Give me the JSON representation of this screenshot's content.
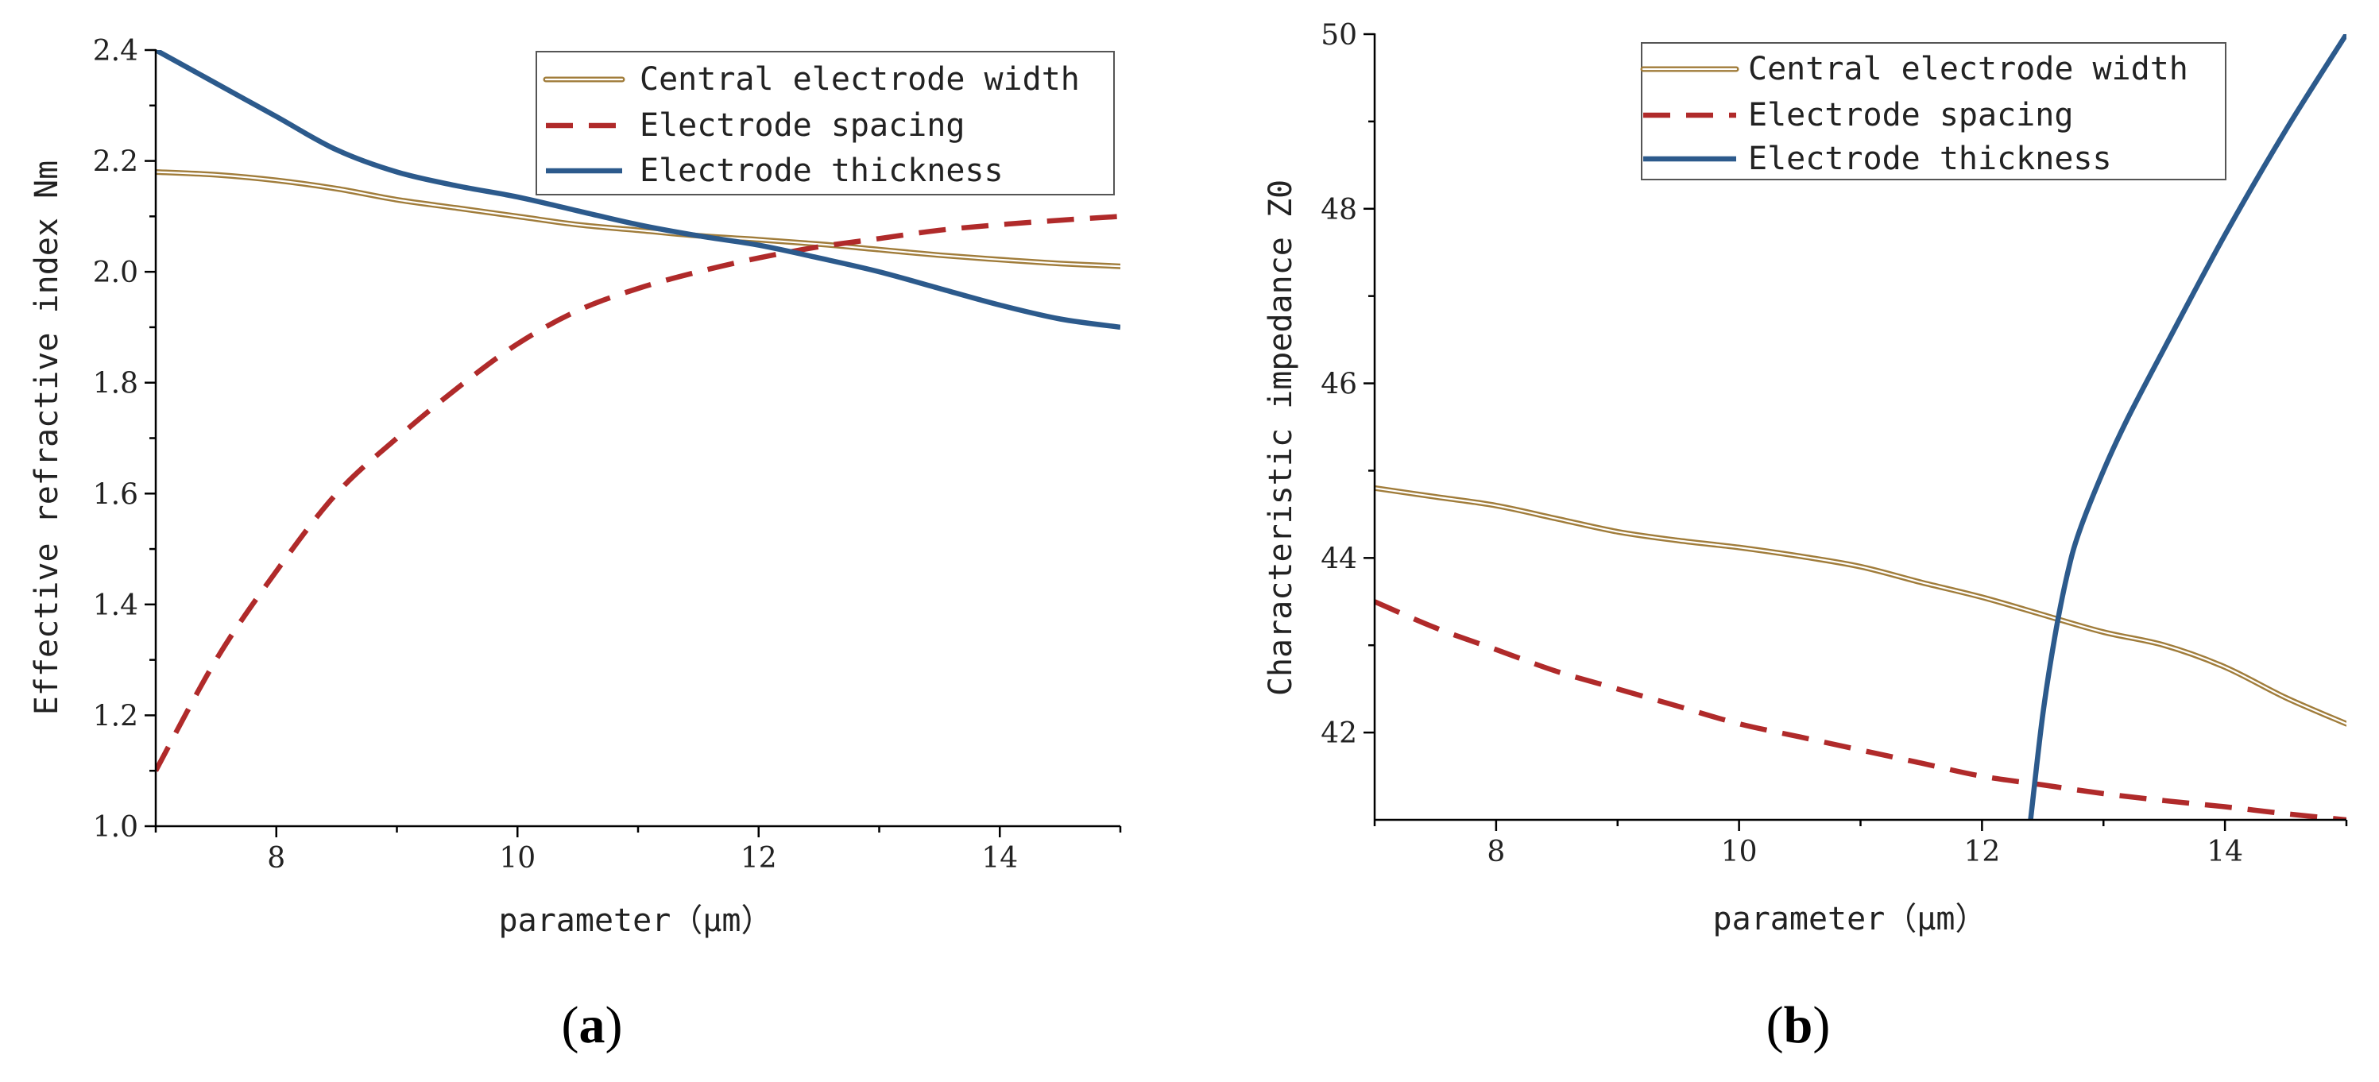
{
  "chart_data": [
    {
      "type": "line",
      "panel_label": "a",
      "xlabel": "parameter（μm）",
      "ylabel": "Effective refractive index Nm",
      "xlim": [
        7,
        15
      ],
      "ylim": [
        1.0,
        2.4
      ],
      "xticks": [
        8,
        10,
        12,
        14
      ],
      "xtick_labels": [
        "8",
        "10",
        "12",
        "14"
      ],
      "yticks": [
        1.0,
        1.2,
        1.4,
        1.6,
        1.8,
        2.0,
        2.2,
        2.4
      ],
      "ytick_labels": [
        "1.0",
        "1.2",
        "1.4",
        "1.6",
        "1.8",
        "2.0",
        "2.2",
        "2.4"
      ],
      "legend_position": "top-right",
      "series": [
        {
          "name": "Central electrode width",
          "style": "double",
          "color": "#a07c3a",
          "x": [
            7,
            7.5,
            8,
            8.5,
            9,
            9.5,
            10,
            10.5,
            11,
            11.5,
            12,
            12.5,
            13,
            13.5,
            14,
            14.5,
            15
          ],
          "y": [
            2.18,
            2.175,
            2.165,
            2.15,
            2.13,
            2.115,
            2.1,
            2.085,
            2.075,
            2.065,
            2.058,
            2.05,
            2.04,
            2.03,
            2.022,
            2.015,
            2.01
          ]
        },
        {
          "name": "Electrode spacing",
          "style": "dashed",
          "color": "#b02a2a",
          "x": [
            7,
            7.5,
            8,
            8.5,
            9,
            9.5,
            10,
            10.5,
            11,
            11.5,
            12,
            12.5,
            13,
            13.5,
            14,
            14.5,
            15
          ],
          "y": [
            1.1,
            1.3,
            1.46,
            1.6,
            1.7,
            1.79,
            1.87,
            1.93,
            1.97,
            2.0,
            2.025,
            2.045,
            2.06,
            2.075,
            2.085,
            2.093,
            2.1
          ]
        },
        {
          "name": "Electrode thickness",
          "style": "solid",
          "color": "#2c5a8c",
          "x": [
            7,
            7.5,
            8,
            8.5,
            9,
            9.5,
            10,
            10.5,
            11,
            11.5,
            12,
            12.5,
            13,
            13.5,
            14,
            14.5,
            15
          ],
          "y": [
            2.4,
            2.34,
            2.28,
            2.22,
            2.18,
            2.155,
            2.135,
            2.11,
            2.085,
            2.065,
            2.048,
            2.025,
            2.0,
            1.97,
            1.94,
            1.915,
            1.9
          ]
        }
      ]
    },
    {
      "type": "line",
      "panel_label": "b",
      "xlabel": "parameter（μm）",
      "ylabel": "Characteristic impedance Z0",
      "xlim": [
        7,
        15
      ],
      "ylim": [
        41,
        50
      ],
      "xticks": [
        8,
        10,
        12,
        14
      ],
      "xtick_labels": [
        "8",
        "10",
        "12",
        "14"
      ],
      "yticks": [
        42,
        44,
        46,
        48,
        50
      ],
      "ytick_labels": [
        "42",
        "44",
        "46",
        "48",
        "50"
      ],
      "legend_position": "top-right",
      "series": [
        {
          "name": "Central electrode width",
          "style": "double",
          "color": "#a07c3a",
          "x": [
            7,
            7.5,
            8,
            8.5,
            9,
            9.5,
            10,
            10.5,
            11,
            11.5,
            12,
            12.5,
            13,
            13.5,
            14,
            14.5,
            15
          ],
          "y": [
            44.8,
            44.7,
            44.6,
            44.45,
            44.3,
            44.2,
            44.12,
            44.02,
            43.9,
            43.72,
            43.55,
            43.35,
            43.15,
            43.0,
            42.75,
            42.4,
            42.1
          ]
        },
        {
          "name": "Electrode spacing",
          "style": "dashed",
          "color": "#b02a2a",
          "x": [
            7,
            7.5,
            8,
            8.5,
            9,
            9.5,
            10,
            10.5,
            11,
            11.5,
            12,
            12.5,
            13,
            13.5,
            14,
            14.5,
            15
          ],
          "y": [
            43.5,
            43.2,
            42.95,
            42.7,
            42.5,
            42.3,
            42.1,
            41.95,
            41.8,
            41.65,
            41.5,
            41.4,
            41.3,
            41.22,
            41.15,
            41.07,
            41.0
          ]
        },
        {
          "name": "Electrode thickness",
          "style": "solid",
          "color": "#2c5a8c",
          "x": [
            12.4,
            12.5,
            12.6,
            12.7,
            12.8,
            13.0,
            13.2,
            13.5,
            14.0,
            14.5,
            15.0
          ],
          "y": [
            41.0,
            42.2,
            43.1,
            43.8,
            44.3,
            45.0,
            45.6,
            46.4,
            47.7,
            48.9,
            50.0
          ]
        }
      ]
    }
  ]
}
